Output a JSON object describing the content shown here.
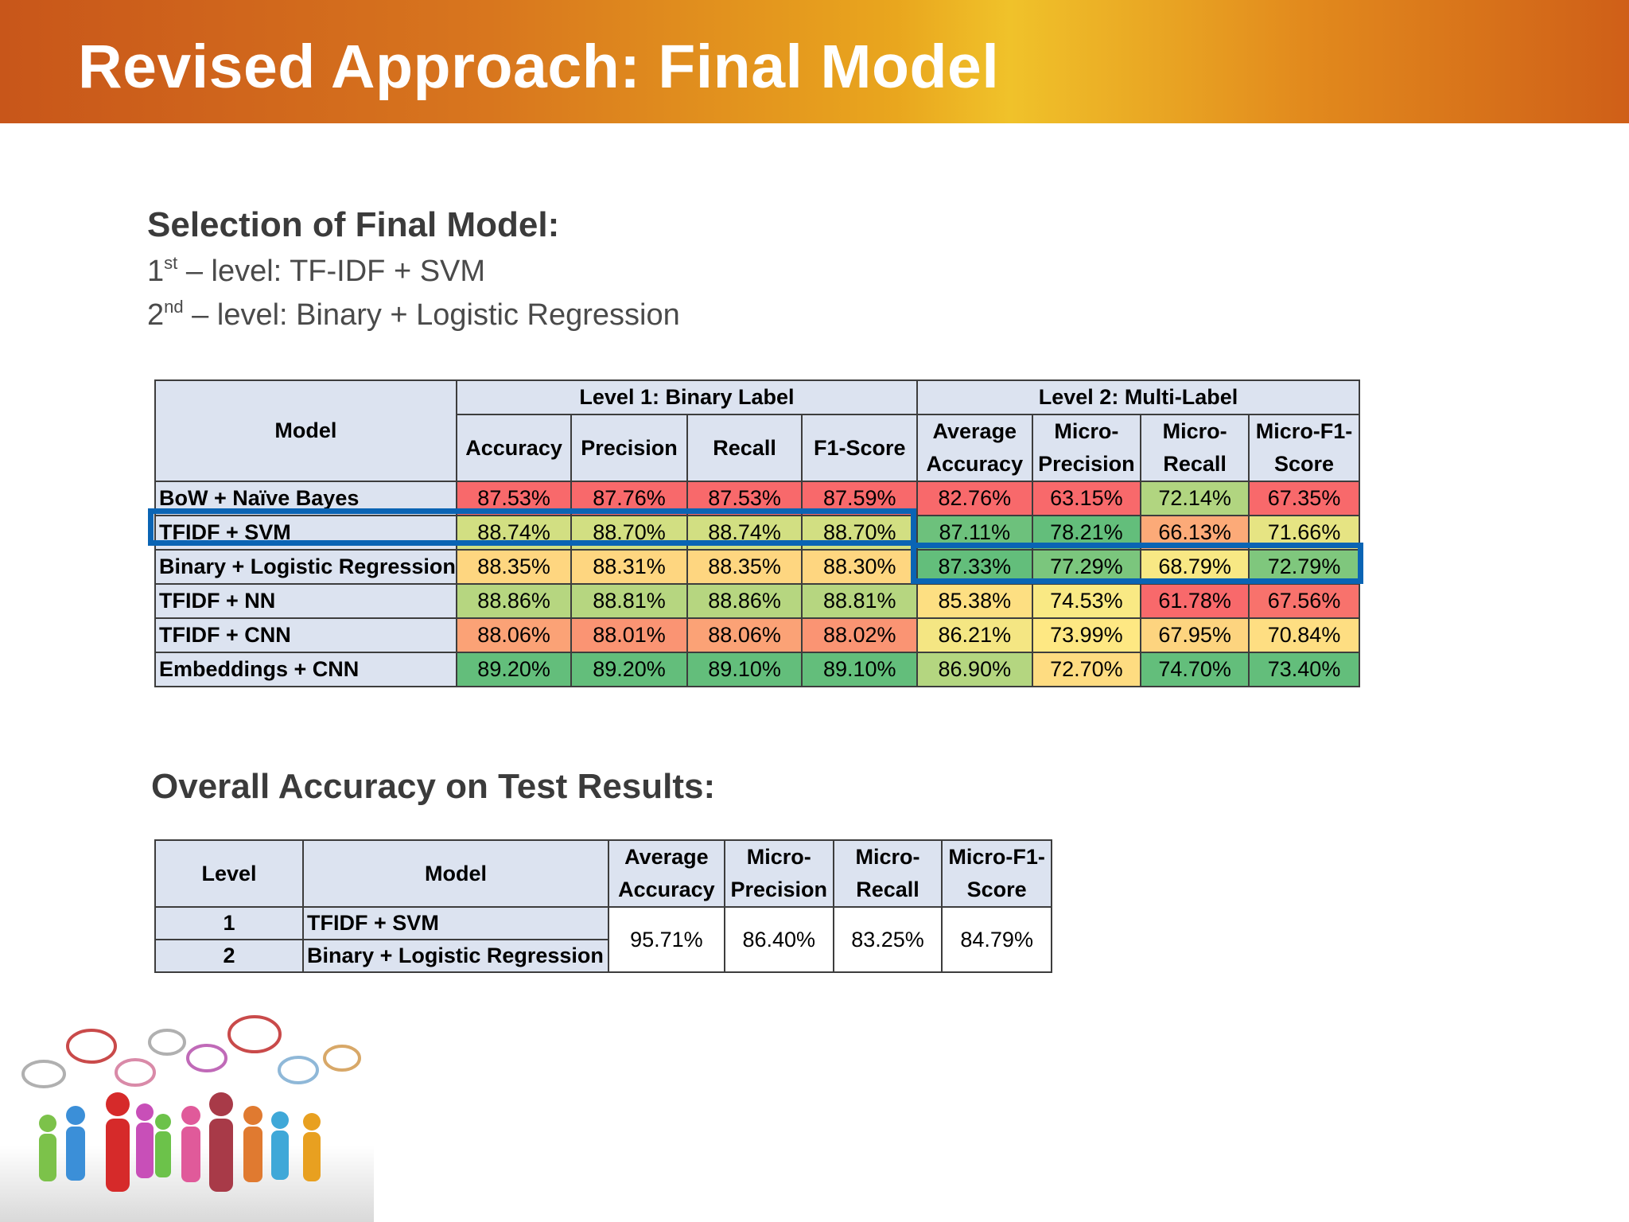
{
  "title": "Revised Approach: Final Model",
  "selection": {
    "heading": "Selection of Final Model:",
    "line1": {
      "num": "1",
      "sup": "st",
      "text": " – level: TF-IDF + SVM"
    },
    "line2": {
      "num": "2",
      "sup": "nd",
      "text": " – level: Binary + Logistic Regression"
    }
  },
  "main_table": {
    "model_header": "Model",
    "group1": "Level 1: Binary Label",
    "group2": "Level 2: Multi-Label",
    "h": {
      "acc": "Accuracy",
      "prec": "Precision",
      "rec": "Recall",
      "f1": "F1-Score",
      "avg_acc": [
        "Average",
        "Accuracy"
      ],
      "micro_prec": [
        "Micro-",
        "Precision"
      ],
      "micro_rec": [
        "Micro-",
        "Recall"
      ],
      "micro_f1": [
        "Micro-F1-",
        "Score"
      ]
    },
    "rows": [
      {
        "model": "BoW + Naïve Bayes",
        "values": [
          "87.53%",
          "87.76%",
          "87.53%",
          "87.59%",
          "82.76%",
          "63.15%",
          "72.14%",
          "67.35%"
        ],
        "colors": [
          "#f8696b",
          "#f8696b",
          "#f8696b",
          "#f8696b",
          "#f8696b",
          "#f8696b",
          "#b1d580",
          "#f8696b"
        ]
      },
      {
        "model": "TFIDF + SVM",
        "values": [
          "88.74%",
          "88.70%",
          "88.74%",
          "88.70%",
          "87.11%",
          "78.21%",
          "66.13%",
          "71.66%"
        ],
        "colors": [
          "#d2df82",
          "#d2df82",
          "#d2df82",
          "#d2df82",
          "#6dc17c",
          "#63be7b",
          "#fcaa78",
          "#e6e483"
        ]
      },
      {
        "model": "Binary + Logistic Regression",
        "values": [
          "88.35%",
          "88.31%",
          "88.35%",
          "88.30%",
          "87.33%",
          "77.29%",
          "68.79%",
          "72.79%"
        ],
        "colors": [
          "#fed680",
          "#fed680",
          "#fed680",
          "#fed680",
          "#63be7b",
          "#7bc67d",
          "#f8e884",
          "#7fc77d"
        ]
      },
      {
        "model": "TFIDF + NN",
        "values": [
          "88.86%",
          "88.81%",
          "88.86%",
          "88.81%",
          "85.38%",
          "74.53%",
          "61.78%",
          "67.56%"
        ],
        "colors": [
          "#b6d680",
          "#b6d680",
          "#b6d680",
          "#b6d680",
          "#fddf82",
          "#f9e984",
          "#f8696b",
          "#f8726c"
        ]
      },
      {
        "model": "TFIDF + CNN",
        "values": [
          "88.06%",
          "88.01%",
          "88.06%",
          "88.02%",
          "86.21%",
          "73.99%",
          "67.95%",
          "70.84%"
        ],
        "colors": [
          "#fba276",
          "#fa9473",
          "#fba276",
          "#fa9473",
          "#f4e683",
          "#fee883",
          "#fdd47f",
          "#fede82"
        ]
      },
      {
        "model": "Embeddings + CNN",
        "values": [
          "89.20%",
          "89.20%",
          "89.10%",
          "89.10%",
          "86.90%",
          "72.70%",
          "74.70%",
          "73.40%"
        ],
        "colors": [
          "#63be7b",
          "#63be7b",
          "#63be7b",
          "#63be7b",
          "#b4d680",
          "#fedc81",
          "#63be7b",
          "#63be7b"
        ]
      }
    ]
  },
  "test": {
    "heading": "Overall Accuracy on Test Results:",
    "h": {
      "level": "Level",
      "model": "Model",
      "avg_acc": [
        "Average",
        "Accuracy"
      ],
      "micro_prec": [
        "Micro-",
        "Precision"
      ],
      "micro_rec": [
        "Micro-",
        "Recall"
      ],
      "micro_f1": [
        "Micro-F1-",
        "Score"
      ]
    },
    "rows": [
      {
        "level": "1",
        "model": "TFIDF + SVM"
      },
      {
        "level": "2",
        "model": "Binary + Logistic Regression"
      }
    ],
    "values": [
      "95.71%",
      "86.40%",
      "83.25%",
      "84.79%"
    ]
  },
  "colors": {
    "header_fill": "#dce3f0",
    "highlight_border": "#0a64b4"
  },
  "illustration": "people-speech-bubbles-illustration"
}
